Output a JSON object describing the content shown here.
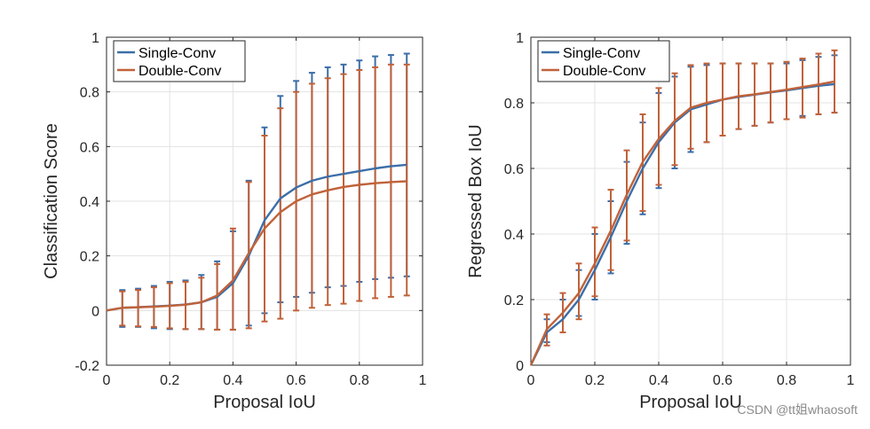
{
  "watermark": "CSDN @tt姐whaosoft",
  "chart_data": [
    {
      "type": "line",
      "xlabel": "Proposal IoU",
      "ylabel": "Classification Score",
      "xlim": [
        0,
        1
      ],
      "ylim": [
        -0.2,
        1
      ],
      "xticks": [
        "0",
        "0.2",
        "0.4",
        "0.6",
        "0.8",
        "1"
      ],
      "xtick_values": [
        0,
        0.2,
        0.4,
        0.6,
        0.8,
        1
      ],
      "yticks": [
        "-0.2",
        "0",
        "0.2",
        "0.4",
        "0.6",
        "0.8",
        "1"
      ],
      "ytick_values": [
        -0.2,
        0,
        0.2,
        0.4,
        0.6,
        0.8,
        1
      ],
      "grid": true,
      "legend_position": "top-left",
      "series": [
        {
          "name": "Single-Conv",
          "color": "#3c6ea8",
          "line": {
            "x": [
              0,
              0.05,
              0.1,
              0.15,
              0.2,
              0.25,
              0.3,
              0.35,
              0.4,
              0.45,
              0.5,
              0.55,
              0.6,
              0.65,
              0.7,
              0.75,
              0.8,
              0.85,
              0.9,
              0.95
            ],
            "y": [
              0,
              0.01,
              0.012,
              0.015,
              0.018,
              0.022,
              0.03,
              0.05,
              0.1,
              0.2,
              0.33,
              0.41,
              0.45,
              0.475,
              0.49,
              0.5,
              0.51,
              0.52,
              0.528,
              0.533
            ]
          },
          "errorbars": {
            "x": [
              0.05,
              0.1,
              0.15,
              0.2,
              0.25,
              0.3,
              0.35,
              0.4,
              0.45,
              0.5,
              0.55,
              0.6,
              0.65,
              0.7,
              0.75,
              0.8,
              0.85,
              0.9,
              0.95
            ],
            "lower": [
              -0.06,
              -0.06,
              -0.065,
              -0.068,
              -0.068,
              -0.068,
              -0.07,
              -0.07,
              -0.055,
              -0.01,
              0.03,
              0.05,
              0.065,
              0.085,
              0.09,
              0.105,
              0.115,
              0.12,
              0.125
            ],
            "upper": [
              0.075,
              0.08,
              0.09,
              0.105,
              0.11,
              0.13,
              0.18,
              0.29,
              0.475,
              0.67,
              0.785,
              0.84,
              0.87,
              0.89,
              0.9,
              0.915,
              0.93,
              0.935,
              0.94
            ]
          }
        },
        {
          "name": "Double-Conv",
          "color": "#c0623a",
          "line": {
            "x": [
              0,
              0.05,
              0.1,
              0.15,
              0.2,
              0.25,
              0.3,
              0.35,
              0.4,
              0.45,
              0.5,
              0.55,
              0.6,
              0.65,
              0.7,
              0.75,
              0.8,
              0.85,
              0.9,
              0.95
            ],
            "y": [
              0,
              0.01,
              0.012,
              0.014,
              0.017,
              0.021,
              0.03,
              0.055,
              0.11,
              0.21,
              0.3,
              0.36,
              0.4,
              0.425,
              0.44,
              0.452,
              0.46,
              0.466,
              0.47,
              0.473
            ]
          },
          "errorbars": {
            "x": [
              0.05,
              0.1,
              0.15,
              0.2,
              0.25,
              0.3,
              0.35,
              0.4,
              0.45,
              0.5,
              0.55,
              0.6,
              0.65,
              0.7,
              0.75,
              0.8,
              0.85,
              0.9,
              0.95
            ],
            "lower": [
              -0.055,
              -0.058,
              -0.06,
              -0.065,
              -0.068,
              -0.068,
              -0.07,
              -0.07,
              -0.065,
              -0.04,
              -0.03,
              0,
              0.01,
              0.02,
              0.025,
              0.035,
              0.045,
              0.05,
              0.055
            ],
            "upper": [
              0.07,
              0.075,
              0.085,
              0.1,
              0.105,
              0.12,
              0.17,
              0.3,
              0.47,
              0.64,
              0.74,
              0.8,
              0.83,
              0.85,
              0.865,
              0.88,
              0.89,
              0.9,
              0.9
            ]
          }
        }
      ]
    },
    {
      "type": "line",
      "xlabel": "Proposal IoU",
      "ylabel": "Regressed Box IoU",
      "xlim": [
        0,
        1
      ],
      "ylim": [
        0,
        1
      ],
      "xticks": [
        "0",
        "0.2",
        "0.4",
        "0.6",
        "0.8",
        "1"
      ],
      "xtick_values": [
        0,
        0.2,
        0.4,
        0.6,
        0.8,
        1
      ],
      "yticks": [
        "0",
        "0.2",
        "0.4",
        "0.6",
        "0.8",
        "1"
      ],
      "ytick_values": [
        0,
        0.2,
        0.4,
        0.6,
        0.8,
        1
      ],
      "grid": true,
      "legend_position": "top-left",
      "series": [
        {
          "name": "Single-Conv",
          "color": "#3c6ea8",
          "line": {
            "x": [
              0,
              0.05,
              0.1,
              0.15,
              0.2,
              0.25,
              0.3,
              0.35,
              0.4,
              0.45,
              0.5,
              0.55,
              0.6,
              0.65,
              0.7,
              0.75,
              0.8,
              0.85,
              0.9,
              0.95
            ],
            "y": [
              0,
              0.1,
              0.14,
              0.2,
              0.29,
              0.39,
              0.5,
              0.6,
              0.68,
              0.74,
              0.78,
              0.795,
              0.81,
              0.818,
              0.825,
              0.832,
              0.838,
              0.845,
              0.852,
              0.857
            ]
          },
          "errorbars": {
            "x": [
              0.05,
              0.1,
              0.15,
              0.2,
              0.25,
              0.3,
              0.35,
              0.4,
              0.45,
              0.5,
              0.55,
              0.6,
              0.65,
              0.7,
              0.75,
              0.8,
              0.85,
              0.9,
              0.95
            ],
            "lower": [
              0.07,
              0.1,
              0.15,
              0.2,
              0.28,
              0.37,
              0.46,
              0.54,
              0.6,
              0.65,
              0.68,
              0.7,
              0.72,
              0.73,
              0.74,
              0.75,
              0.76,
              0.765,
              0.77
            ],
            "upper": [
              0.14,
              0.2,
              0.29,
              0.4,
              0.5,
              0.62,
              0.74,
              0.83,
              0.88,
              0.91,
              0.915,
              0.92,
              0.92,
              0.92,
              0.92,
              0.92,
              0.93,
              0.94,
              0.945
            ]
          }
        },
        {
          "name": "Double-Conv",
          "color": "#c0623a",
          "line": {
            "x": [
              0,
              0.05,
              0.1,
              0.15,
              0.2,
              0.25,
              0.3,
              0.35,
              0.4,
              0.45,
              0.5,
              0.55,
              0.6,
              0.65,
              0.7,
              0.75,
              0.8,
              0.85,
              0.9,
              0.95
            ],
            "y": [
              0,
              0.11,
              0.16,
              0.22,
              0.31,
              0.41,
              0.52,
              0.62,
              0.69,
              0.745,
              0.785,
              0.8,
              0.81,
              0.82,
              0.826,
              0.833,
              0.84,
              0.848,
              0.856,
              0.865
            ]
          },
          "errorbars": {
            "x": [
              0.05,
              0.1,
              0.15,
              0.2,
              0.25,
              0.3,
              0.35,
              0.4,
              0.45,
              0.5,
              0.55,
              0.6,
              0.65,
              0.7,
              0.75,
              0.8,
              0.85,
              0.9,
              0.95
            ],
            "lower": [
              0.06,
              0.1,
              0.14,
              0.21,
              0.29,
              0.38,
              0.47,
              0.55,
              0.61,
              0.66,
              0.68,
              0.7,
              0.72,
              0.73,
              0.74,
              0.75,
              0.755,
              0.765,
              0.77
            ],
            "upper": [
              0.155,
              0.22,
              0.31,
              0.42,
              0.535,
              0.655,
              0.765,
              0.845,
              0.89,
              0.915,
              0.92,
              0.92,
              0.92,
              0.92,
              0.92,
              0.925,
              0.935,
              0.95,
              0.96
            ]
          }
        }
      ]
    }
  ]
}
